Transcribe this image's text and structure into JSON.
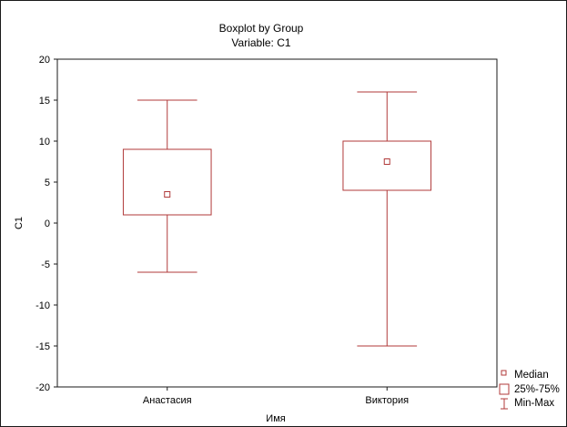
{
  "chart_data": {
    "type": "boxplot",
    "title": "Boxplot by Group",
    "subtitle": "Variable: C1",
    "xlabel": "Имя",
    "ylabel": "C1",
    "ylim": [
      -20,
      20
    ],
    "yticks": [
      -20,
      -15,
      -10,
      -5,
      0,
      5,
      10,
      15,
      20
    ],
    "grid": false,
    "legend_position": "bottom-right",
    "categories": [
      "Анастасия",
      "Виктория"
    ],
    "groups": [
      {
        "category": "Анастасия",
        "min": -6,
        "q1": 1,
        "median": 3.5,
        "q3": 9,
        "max": 15
      },
      {
        "category": "Виктория",
        "min": -15,
        "q1": 4,
        "median": 7.5,
        "q3": 10,
        "max": 16
      }
    ],
    "legend": [
      {
        "label": "Median",
        "symbol": "small-square"
      },
      {
        "label": "25%-75%",
        "symbol": "box"
      },
      {
        "label": "Min-Max",
        "symbol": "whisker"
      }
    ],
    "colors": {
      "box": "#b03a3a",
      "frame": "#1a1a1a"
    }
  }
}
